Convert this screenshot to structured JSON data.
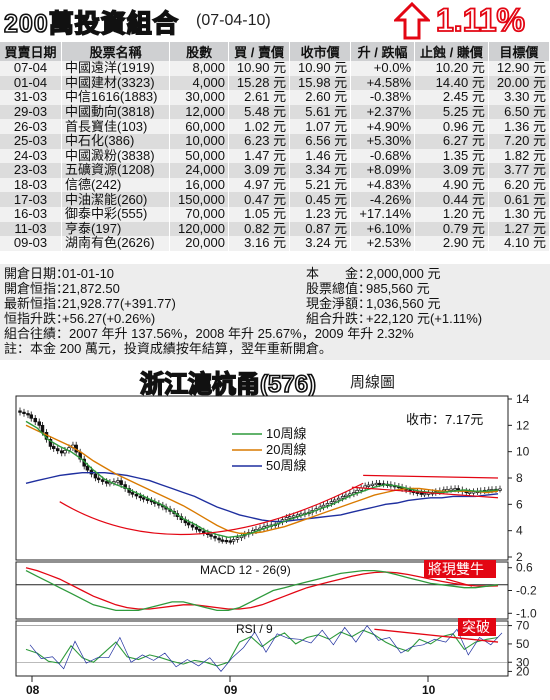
{
  "header": {
    "title": "200萬投資組合",
    "date": "(07-04-10)",
    "change_pct": "1.11%"
  },
  "table": {
    "columns": [
      "買賣日期",
      "股票名稱",
      "股數",
      "買 / 賣價",
      "收市價",
      "升 / 跌幅",
      "止蝕 / 賺價",
      "目標價"
    ],
    "rows": [
      [
        "07-04",
        "中國遠洋(1919)",
        "8,000",
        "10.90 元",
        "10.90 元",
        "+0.0%",
        "10.20 元",
        "12.90 元"
      ],
      [
        "01-04",
        "中國建材(3323)",
        "4,000",
        "15.28 元",
        "15.98 元",
        "+4.58%",
        "14.40 元",
        "20.00 元"
      ],
      [
        "31-03",
        "中信1616(1883)",
        "30,000",
        "2.61 元",
        "2.60 元",
        "-0.38%",
        "2.45 元",
        "3.30 元"
      ],
      [
        "29-03",
        "中國動向(3818)",
        "12,000",
        "5.48 元",
        "5.61 元",
        "+2.37%",
        "5.25 元",
        "6.50 元"
      ],
      [
        "26-03",
        "首長寶佳(103)",
        "60,000",
        "1.02 元",
        "1.07 元",
        "+4.90%",
        "0.96 元",
        "1.36 元"
      ],
      [
        "25-03",
        "中石化(386)",
        "10,000",
        "6.23 元",
        "6.56 元",
        "+5.30%",
        "6.27 元",
        "7.20 元"
      ],
      [
        "24-03",
        "中國澱粉(3838)",
        "50,000",
        "1.47 元",
        "1.46 元",
        "-0.68%",
        "1.35 元",
        "1.82 元"
      ],
      [
        "23-03",
        "五礦資源(1208)",
        "24,000",
        "3.09 元",
        "3.34 元",
        "+8.09%",
        "3.09 元",
        "3.77 元"
      ],
      [
        "18-03",
        "信德(242)",
        "16,000",
        "4.97 元",
        "5.21 元",
        "+4.83%",
        "4.90 元",
        "6.20 元"
      ],
      [
        "17-03",
        "中油潔能(260)",
        "150,000",
        "0.47 元",
        "0.45 元",
        "-4.26%",
        "0.44 元",
        "0.61 元"
      ],
      [
        "16-03",
        "御泰中彩(555)",
        "70,000",
        "1.05 元",
        "1.23 元",
        "+17.14%",
        "1.20 元",
        "1.30 元"
      ],
      [
        "11-03",
        "亨泰(197)",
        "120,000",
        "0.82 元",
        "0.87 元",
        "+6.10%",
        "0.79 元",
        "1.27 元"
      ],
      [
        "09-03",
        "湖南有色(2626)",
        "20,000",
        "3.16 元",
        "3.24 元",
        "+2.53%",
        "2.90 元",
        "4.10 元"
      ]
    ]
  },
  "summary": {
    "open_date_label": "開倉日期：",
    "open_date": "01-01-10",
    "open_index_label": "開倉恒指：",
    "open_index": "21,872.50",
    "latest_index_label": "最新恒指：",
    "latest_index": "21,928.77(+391.77)",
    "index_change_label": "恒指升跌：",
    "index_change": "+56.27(+0.26%)",
    "capital_label": "本　　金：",
    "capital": "2,000,000 元",
    "stock_value_label": "股票總值：",
    "stock_value": "985,560 元",
    "cash_label": "現金淨額：",
    "cash": "1,036,560 元",
    "combo_change_label": "組合升跌：",
    "combo_change": "+22,120 元(+1.11%)",
    "record": "組合往績：2007 年升 137.56%，2008 年升 25.67%，2009 年升 2.32%",
    "note": "註：本金 200 萬元，投資成績按年結算，翌年重新開倉。"
  },
  "chart_title": {
    "main": "浙江滬杭甬(576)",
    "sub": "周線圖"
  },
  "chart_data": {
    "type": "line",
    "close_label": "收市：7.17元",
    "x_ticks": [
      "08",
      "09",
      "10"
    ],
    "price_axis": {
      "ylim": [
        2,
        14
      ],
      "ticks": [
        2,
        4,
        6,
        8,
        10,
        12,
        14
      ]
    },
    "legend": [
      "10周線",
      "20周線",
      "50周線"
    ],
    "colors": {
      "ma10": "#2e9a3c",
      "ma20": "#d97a00",
      "ma50": "#1f2f9f",
      "candle": "#111111",
      "annotation": "#e30613",
      "label_bg": "#e30613"
    },
    "ma10": [
      12.3,
      11.8,
      10.9,
      10.4,
      10.0,
      9.4,
      8.6,
      7.9,
      7.5,
      7.2,
      6.8,
      6.4,
      6.0,
      5.5,
      4.9,
      4.5,
      4.0,
      3.7,
      3.5,
      3.6,
      3.8,
      4.1,
      4.4,
      4.7,
      5.0,
      5.3,
      5.6,
      5.9,
      6.3,
      6.7,
      7.0,
      7.3,
      7.5,
      7.4,
      7.2,
      7.0,
      6.9,
      6.9,
      7.0,
      7.1,
      7.0,
      7.0,
      7.1
    ],
    "ma20": [
      12.0,
      11.6,
      11.2,
      10.8,
      10.4,
      9.9,
      9.3,
      8.8,
      8.3,
      7.9,
      7.5,
      7.1,
      6.7,
      6.3,
      5.9,
      5.4,
      4.9,
      4.4,
      4.0,
      3.8,
      3.8,
      3.9,
      4.1,
      4.3,
      4.6,
      4.9,
      5.2,
      5.5,
      5.8,
      6.1,
      6.4,
      6.7,
      6.9,
      7.1,
      7.2,
      7.2,
      7.1,
      7.0,
      7.0,
      7.0,
      7.0,
      6.9,
      7.0
    ],
    "ma50": [
      7.6,
      7.8,
      8.0,
      8.2,
      8.3,
      8.4,
      8.4,
      8.4,
      8.3,
      8.2,
      8.0,
      7.8,
      7.5,
      7.2,
      6.9,
      6.6,
      6.2,
      5.8,
      5.5,
      5.2,
      5.0,
      4.8,
      4.7,
      4.7,
      4.8,
      4.9,
      5.0,
      5.1,
      5.2,
      5.4,
      5.6,
      5.8,
      6.0,
      6.1,
      6.3,
      6.4,
      6.5,
      6.5,
      6.6,
      6.6,
      6.6,
      6.7,
      6.8
    ],
    "closes": [
      12.8,
      12.0,
      10.4,
      9.9,
      10.5,
      8.9,
      8.0,
      7.6,
      7.8,
      6.9,
      6.5,
      6.2,
      5.8,
      5.3,
      4.6,
      4.1,
      3.7,
      3.3,
      3.2,
      3.6,
      4.0,
      4.3,
      4.5,
      5.0,
      5.2,
      5.4,
      5.8,
      6.2,
      6.6,
      6.9,
      7.4,
      7.6,
      7.5,
      7.3,
      7.0,
      6.8,
      6.9,
      7.1,
      7.2,
      6.9,
      7.0,
      7.1,
      7.17
    ],
    "macd": {
      "title": "MACD 12 - 26(9)",
      "ylim": [
        -1.2,
        0.8
      ],
      "ticks": [
        "0.6",
        "-0.2",
        "-1.0"
      ],
      "label": "將現雙牛",
      "dif": [
        0.5,
        0.3,
        0.1,
        -0.1,
        -0.3,
        -0.5,
        -0.7,
        -0.8,
        -0.9,
        -0.9,
        -0.9,
        -0.8,
        -0.7,
        -0.6,
        -0.6,
        -0.7,
        -0.8,
        -0.9,
        -0.9,
        -0.8,
        -0.6,
        -0.4,
        -0.2,
        -0.1,
        0.0,
        0.1,
        0.2,
        0.3,
        0.4,
        0.45,
        0.5,
        0.5,
        0.45,
        0.35,
        0.25,
        0.15,
        0.05,
        0.0,
        -0.05,
        -0.1,
        -0.1,
        -0.05,
        0.0
      ],
      "dea": [
        0.6,
        0.5,
        0.35,
        0.2,
        0.0,
        -0.2,
        -0.4,
        -0.55,
        -0.7,
        -0.8,
        -0.85,
        -0.85,
        -0.8,
        -0.75,
        -0.7,
        -0.7,
        -0.75,
        -0.8,
        -0.85,
        -0.85,
        -0.8,
        -0.7,
        -0.55,
        -0.4,
        -0.25,
        -0.1,
        0.0,
        0.1,
        0.2,
        0.3,
        0.38,
        0.43,
        0.45,
        0.42,
        0.36,
        0.28,
        0.2,
        0.12,
        0.05,
        0.0,
        -0.04,
        -0.05,
        -0.04
      ]
    },
    "rsi": {
      "title": "RSI / 9",
      "ylim": [
        15,
        75
      ],
      "ticks": [
        "70",
        "50",
        "30",
        "20"
      ],
      "label": "突破",
      "values": [
        44,
        40,
        31,
        29,
        48,
        35,
        30,
        41,
        52,
        36,
        33,
        38,
        35,
        31,
        28,
        32,
        30,
        26,
        30,
        52,
        58,
        47,
        56,
        62,
        50,
        57,
        60,
        55,
        63,
        58,
        65,
        60,
        52,
        46,
        42,
        55,
        50,
        58,
        61,
        44,
        52,
        55,
        57
      ]
    }
  }
}
